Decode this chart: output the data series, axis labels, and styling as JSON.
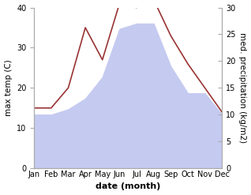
{
  "months": [
    "Jan",
    "Feb",
    "Mar",
    "Apr",
    "May",
    "Jun",
    "Jul",
    "Aug",
    "Sep",
    "Oct",
    "Nov",
    "Dec"
  ],
  "temperature": [
    15,
    15,
    20,
    35,
    27,
    41,
    40,
    42,
    33,
    26,
    20,
    14
  ],
  "precipitation_right": [
    10,
    10,
    11,
    13,
    17,
    26,
    27,
    27,
    19,
    14,
    14,
    10
  ],
  "temp_ylim": [
    0,
    40
  ],
  "precip_ylim": [
    0,
    30
  ],
  "temp_color": "#993333",
  "precip_fill_color": "#c5caf0",
  "xlabel": "date (month)",
  "ylabel_left": "max temp (C)",
  "ylabel_right": "med. precipitation (kg/m2)",
  "label_fontsize": 7.5,
  "tick_fontsize": 7,
  "xlabel_fontsize": 8
}
